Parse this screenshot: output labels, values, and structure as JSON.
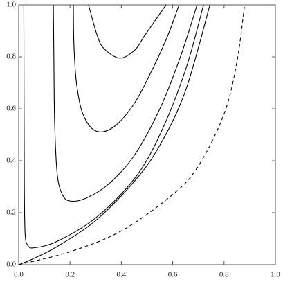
{
  "chart_data": {
    "type": "line",
    "xlim": [
      0,
      1
    ],
    "ylim": [
      0,
      1
    ],
    "xticks": [
      {
        "value": 0,
        "label": "0.0"
      },
      {
        "value": 0.2,
        "label": "0.2"
      },
      {
        "value": 0.4,
        "label": "0.4"
      },
      {
        "value": 0.6,
        "label": "0.6"
      },
      {
        "value": 0.8,
        "label": "0.8"
      },
      {
        "value": 1,
        "label": "1.0"
      }
    ],
    "yticks": [
      {
        "value": 0,
        "label": "0.0"
      },
      {
        "value": 0.2,
        "label": "0.2"
      },
      {
        "value": 0.4,
        "label": "0.4"
      },
      {
        "value": 0.6,
        "label": "0.6"
      },
      {
        "value": 0.8,
        "label": "0.8"
      },
      {
        "value": 1,
        "label": "1.0"
      }
    ],
    "series": [
      {
        "color": "#000000",
        "dashed": false,
        "x": [
          0.272,
          0.305,
          0.332,
          0.394,
          0.453,
          0.493,
          0.574
        ],
        "values": [
          1,
          0.885,
          0.832,
          0.795,
          0.827,
          0.885,
          1
        ]
      },
      {
        "color": "#000000",
        "dashed": false,
        "x": [
          0.213,
          0.215,
          0.225,
          0.25,
          0.3,
          0.37,
          0.45,
          0.52,
          0.58,
          0.625
        ],
        "values": [
          1,
          0.85,
          0.7,
          0.58,
          0.515,
          0.53,
          0.62,
          0.75,
          0.88,
          1
        ]
      },
      {
        "color": "#000000",
        "dashed": false,
        "x": [
          0.135,
          0.137,
          0.14,
          0.15,
          0.17,
          0.2,
          0.26,
          0.35,
          0.45,
          0.55,
          0.63,
          0.695
        ],
        "values": [
          1,
          0.8,
          0.55,
          0.35,
          0.27,
          0.245,
          0.255,
          0.31,
          0.42,
          0.6,
          0.8,
          1
        ]
      },
      {
        "color": "#000000",
        "dashed": false,
        "x": [
          0.02,
          0.021,
          0.022,
          0.025,
          0.035,
          0.06,
          0.15,
          0.3,
          0.45,
          0.55,
          0.65,
          0.72
        ],
        "values": [
          1,
          0.6,
          0.3,
          0.12,
          0.075,
          0.065,
          0.09,
          0.18,
          0.33,
          0.5,
          0.75,
          1
        ]
      },
      {
        "color": "#000000",
        "dashed": false,
        "x": [
          0,
          0.05,
          0.15,
          0.3,
          0.45,
          0.55,
          0.65,
          0.745
        ],
        "values": [
          0,
          0.02,
          0.07,
          0.17,
          0.32,
          0.46,
          0.67,
          1
        ]
      },
      {
        "color": "#000000",
        "dashed": true,
        "x": [
          0,
          0.2,
          0.4,
          0.6,
          0.7,
          0.8,
          0.85,
          0.88
        ],
        "values": [
          0,
          0.05,
          0.13,
          0.27,
          0.38,
          0.58,
          0.78,
          1
        ]
      }
    ]
  }
}
